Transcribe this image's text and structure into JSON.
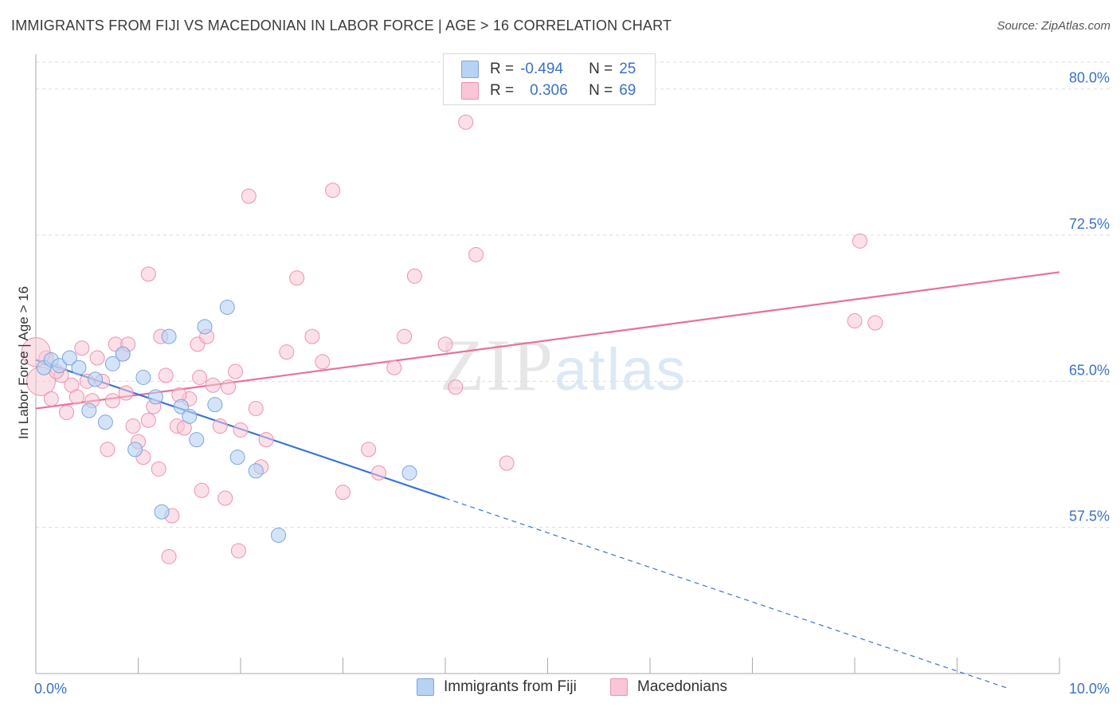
{
  "title": "IMMIGRANTS FROM FIJI VS MACEDONIAN IN LABOR FORCE | AGE > 16 CORRELATION CHART",
  "source": "Source: ZipAtlas.com",
  "watermark": {
    "zip": "ZIP",
    "atlas": "atlas"
  },
  "colors": {
    "fiji_fill": "#b8d2f4",
    "fiji_stroke": "#7aa6de",
    "fiji_line": "#3a72d6",
    "mac_fill": "#f8c6d6",
    "mac_stroke": "#ec93b0",
    "mac_line": "#e8709a",
    "axis_label": "#3a72c6",
    "grid": "#dddddd"
  },
  "legend": {
    "rows": [
      {
        "r_label": "R =",
        "r_value": "-0.494",
        "n_label": "N =",
        "n_value": "25"
      },
      {
        "r_label": "R =",
        "r_value": "0.306",
        "n_label": "N =",
        "n_value": "69"
      }
    ]
  },
  "bottom_legend": {
    "fiji": "Immigrants from Fiji",
    "mac": "Macedonians"
  },
  "chart_data": {
    "type": "scatter",
    "title": "IMMIGRANTS FROM FIJI VS MACEDONIAN IN LABOR FORCE | AGE > 16 CORRELATION CHART",
    "xlabel": "",
    "ylabel": "In Labor Force | Age > 16",
    "xlim": [
      0,
      10
    ],
    "ylim": [
      50.0,
      81.5
    ],
    "x_tick_labels": [
      "0.0%",
      "10.0%"
    ],
    "y_ticks": [
      57.5,
      65.0,
      72.5,
      80.0
    ],
    "y_tick_labels": [
      "57.5%",
      "65.0%",
      "72.5%",
      "80.0%"
    ],
    "series": [
      {
        "name": "Immigrants from Fiji",
        "r": -0.494,
        "n": 25,
        "trend": {
          "x0": 0.0,
          "y0": 66.1,
          "x1": 4.0,
          "y1": 59.0,
          "dash_to_x": 9.5
        },
        "points": [
          [
            0.08,
            65.7
          ],
          [
            0.15,
            66.1
          ],
          [
            0.23,
            65.8
          ],
          [
            0.33,
            66.2
          ],
          [
            0.42,
            65.7
          ],
          [
            0.52,
            63.5
          ],
          [
            0.58,
            65.1
          ],
          [
            0.68,
            62.9
          ],
          [
            0.75,
            65.9
          ],
          [
            0.85,
            66.4
          ],
          [
            0.97,
            61.5
          ],
          [
            1.05,
            65.2
          ],
          [
            1.17,
            64.2
          ],
          [
            1.23,
            58.3
          ],
          [
            1.3,
            67.3
          ],
          [
            1.42,
            63.7
          ],
          [
            1.5,
            63.2
          ],
          [
            1.57,
            62.0
          ],
          [
            1.65,
            67.8
          ],
          [
            1.75,
            63.8
          ],
          [
            1.87,
            68.8
          ],
          [
            1.97,
            61.1
          ],
          [
            2.15,
            60.4
          ],
          [
            2.37,
            57.1
          ],
          [
            3.65,
            60.3
          ]
        ]
      },
      {
        "name": "Macedonians",
        "r": 0.306,
        "n": 69,
        "trend": {
          "x0": 0.0,
          "y0": 63.6,
          "x1": 10.0,
          "y1": 70.6
        },
        "points": [
          [
            0.05,
            65.0
          ],
          [
            0.15,
            64.1
          ],
          [
            0.25,
            65.3
          ],
          [
            0.35,
            64.8
          ],
          [
            0.45,
            66.7
          ],
          [
            0.55,
            64.0
          ],
          [
            0.65,
            65.0
          ],
          [
            0.7,
            61.5
          ],
          [
            0.78,
            66.9
          ],
          [
            0.85,
            66.4
          ],
          [
            0.88,
            64.4
          ],
          [
            0.95,
            62.7
          ],
          [
            1.0,
            61.9
          ],
          [
            1.05,
            61.1
          ],
          [
            1.1,
            70.5
          ],
          [
            1.15,
            63.7
          ],
          [
            1.22,
            67.3
          ],
          [
            1.27,
            65.3
          ],
          [
            1.3,
            56.0
          ],
          [
            1.33,
            58.1
          ],
          [
            1.38,
            62.7
          ],
          [
            1.45,
            62.6
          ],
          [
            1.5,
            64.1
          ],
          [
            1.58,
            66.9
          ],
          [
            1.62,
            59.4
          ],
          [
            1.67,
            67.3
          ],
          [
            1.73,
            64.8
          ],
          [
            1.8,
            62.7
          ],
          [
            1.88,
            64.7
          ],
          [
            1.98,
            56.3
          ],
          [
            2.08,
            74.5
          ],
          [
            2.15,
            63.6
          ],
          [
            2.2,
            60.6
          ],
          [
            2.45,
            66.5
          ],
          [
            2.55,
            70.3
          ],
          [
            2.7,
            67.3
          ],
          [
            2.8,
            66.0
          ],
          [
            2.9,
            74.8
          ],
          [
            3.0,
            59.3
          ],
          [
            3.25,
            61.5
          ],
          [
            3.35,
            60.3
          ],
          [
            3.5,
            65.7
          ],
          [
            3.6,
            67.3
          ],
          [
            3.7,
            70.4
          ],
          [
            4.0,
            66.9
          ],
          [
            4.1,
            64.7
          ],
          [
            4.2,
            78.3
          ],
          [
            4.3,
            71.5
          ],
          [
            4.6,
            60.8
          ],
          [
            8.0,
            68.1
          ],
          [
            8.05,
            72.2
          ],
          [
            8.2,
            68.0
          ],
          [
            0.9,
            66.9
          ],
          [
            0.3,
            63.4
          ],
          [
            1.2,
            60.5
          ],
          [
            0.6,
            66.2
          ],
          [
            1.6,
            65.2
          ],
          [
            2.0,
            62.5
          ],
          [
            1.1,
            63.0
          ],
          [
            0.4,
            64.2
          ],
          [
            1.4,
            64.3
          ],
          [
            0.75,
            64.0
          ],
          [
            0.2,
            65.5
          ],
          [
            0.5,
            65.0
          ],
          [
            0.1,
            66.2
          ],
          [
            1.85,
            59.0
          ],
          [
            2.25,
            62.0
          ],
          [
            1.95,
            65.5
          ],
          [
            0.0,
            66.5
          ]
        ]
      }
    ]
  }
}
